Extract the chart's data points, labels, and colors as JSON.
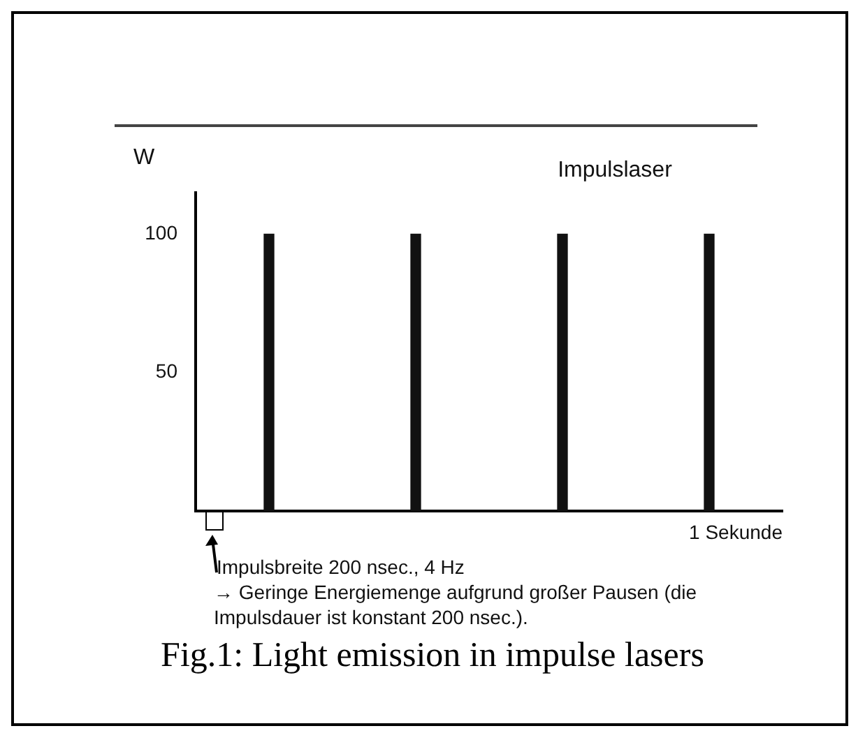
{
  "chart_data": {
    "type": "bar",
    "title": "Impulslaser",
    "ylabel": "W",
    "xlabel": "1 Sekunde",
    "categories": [
      null,
      null,
      null,
      null
    ],
    "values": [
      100,
      100,
      100,
      100
    ],
    "color": "#111111",
    "ylim": [
      0,
      115
    ],
    "yticks": [
      50,
      100
    ],
    "grid": false,
    "legend": false,
    "tick_labels": "y",
    "annotations": [
      "Impulsbreite 200 nsec., 4 Hz",
      "→ Geringe Energiemenge aufgrund großer Pausen (die Impulsdauer ist konstant 200 nsec.).",
      "Fig.1: Light emission in impulse lasers"
    ]
  }
}
